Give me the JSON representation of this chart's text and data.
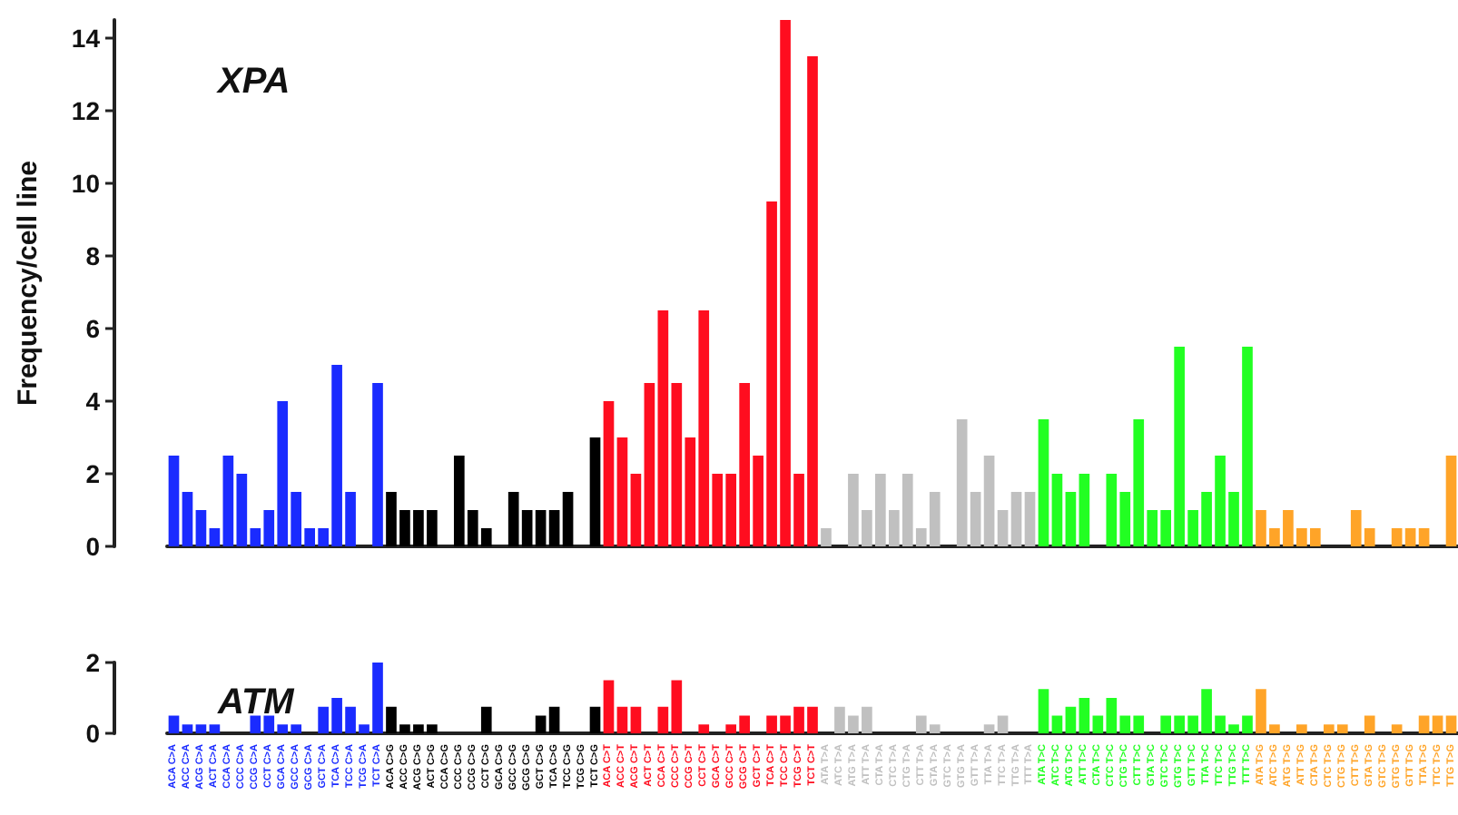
{
  "chart_data": [
    {
      "type": "bar",
      "title": "XPA",
      "ylabel": "Frequency/cell line",
      "tick_labels": "y",
      "categories": [
        null,
        null,
        null,
        null,
        null,
        null,
        null,
        null,
        null,
        null,
        null,
        null,
        null,
        null,
        null,
        null,
        null,
        null,
        null,
        null,
        null,
        null,
        null,
        null,
        null,
        null,
        null,
        null,
        null,
        null,
        null,
        null,
        null,
        null,
        null,
        null,
        null,
        null,
        null,
        null,
        null,
        null,
        null,
        null,
        null,
        null,
        null,
        null,
        null,
        null,
        null,
        null,
        null,
        null,
        null,
        null,
        null,
        null,
        null,
        null,
        null,
        null,
        null,
        null,
        null,
        null,
        null,
        null,
        null,
        null,
        null,
        null,
        null,
        null,
        null,
        null,
        null,
        null,
        null,
        null,
        null,
        null,
        null,
        null,
        null,
        null,
        null,
        null,
        null,
        null,
        null,
        null,
        null,
        null,
        null
      ],
      "values": [
        2.5,
        1.5,
        1,
        0.5,
        2.5,
        2,
        0.5,
        1,
        4,
        1.5,
        0.5,
        0.5,
        5,
        1.5,
        0,
        4.5,
        1.5,
        1,
        1,
        1,
        0,
        2.5,
        1,
        0.5,
        0,
        1.5,
        1,
        1,
        1,
        1.5,
        0,
        3,
        4,
        3,
        2,
        4.5,
        6.5,
        4.5,
        3,
        6.5,
        2,
        2,
        4.5,
        2.5,
        9.5,
        14.5,
        2,
        13.5,
        0.5,
        0,
        2,
        1,
        2,
        1,
        2,
        0.5,
        1.5,
        0,
        3.5,
        1.5,
        2.5,
        1,
        1.5,
        1.5,
        3.5,
        2,
        1.5,
        2,
        0,
        2,
        1.5,
        3.5,
        1,
        1,
        5.5,
        1,
        1.5,
        2.5,
        1.5,
        5.5,
        1,
        0.5,
        1,
        0.5,
        0.5,
        0,
        0,
        1,
        0.5,
        0,
        0.5,
        0.5,
        0.5,
        0,
        2.5
      ],
      "colors": [
        "#1a2bff",
        "#1a2bff",
        "#1a2bff",
        "#1a2bff",
        "#1a2bff",
        "#1a2bff",
        "#1a2bff",
        "#1a2bff",
        "#1a2bff",
        "#1a2bff",
        "#1a2bff",
        "#1a2bff",
        "#1a2bff",
        "#1a2bff",
        "#1a2bff",
        "#1a2bff",
        "#000000",
        "#000000",
        "#000000",
        "#000000",
        "#000000",
        "#000000",
        "#000000",
        "#000000",
        "#000000",
        "#000000",
        "#000000",
        "#000000",
        "#000000",
        "#000000",
        "#000000",
        "#000000",
        "#ff0d1f",
        "#ff0d1f",
        "#ff0d1f",
        "#ff0d1f",
        "#ff0d1f",
        "#ff0d1f",
        "#ff0d1f",
        "#ff0d1f",
        "#ff0d1f",
        "#ff0d1f",
        "#ff0d1f",
        "#ff0d1f",
        "#ff0d1f",
        "#ff0d1f",
        "#ff0d1f",
        "#ff0d1f",
        "#c0c0c0",
        "#c0c0c0",
        "#c0c0c0",
        "#c0c0c0",
        "#c0c0c0",
        "#c0c0c0",
        "#c0c0c0",
        "#c0c0c0",
        "#c0c0c0",
        "#c0c0c0",
        "#c0c0c0",
        "#c0c0c0",
        "#c0c0c0",
        "#c0c0c0",
        "#c0c0c0",
        "#c0c0c0",
        "#22ff22",
        "#22ff22",
        "#22ff22",
        "#22ff22",
        "#22ff22",
        "#22ff22",
        "#22ff22",
        "#22ff22",
        "#22ff22",
        "#22ff22",
        "#22ff22",
        "#22ff22",
        "#22ff22",
        "#22ff22",
        "#22ff22",
        "#22ff22",
        "#ffa428",
        "#ffa428",
        "#ffa428",
        "#ffa428",
        "#ffa428",
        "#ffa428",
        "#ffa428",
        "#ffa428",
        "#ffa428",
        "#ffa428",
        "#ffa428",
        "#ffa428",
        "#ffa428",
        "#ffa428",
        "#ffa428"
      ],
      "ylim": [
        0,
        14.5
      ],
      "yticks": [
        0,
        2,
        4,
        6,
        8,
        10,
        12,
        14
      ]
    },
    {
      "type": "bar",
      "title": "ATM",
      "categories": [
        "ACA C>A",
        "ACC C>A",
        "ACG C>A",
        "ACT C>A",
        "CCA C>A",
        "CCC C>A",
        "CCG C>A",
        "CCT C>A",
        "GCA C>A",
        "GCC C>A",
        "GCG C>A",
        "GCT C>A",
        "TCA C>A",
        "TCC C>A",
        "TCG C>A",
        "TCT C>A",
        "ACA C>G",
        "ACC C>G",
        "ACG C>G",
        "ACT C>G",
        "CCA C>G",
        "CCC C>G",
        "CCG C>G",
        "CCT C>G",
        "GCA C>G",
        "GCC C>G",
        "GCG C>G",
        "GCT C>G",
        "TCA C>G",
        "TCC C>G",
        "TCG C>G",
        "TCT C>G",
        "ACA C>T",
        "ACC C>T",
        "ACG C>T",
        "ACT C>T",
        "CCA C>T",
        "CCC C>T",
        "CCG C>T",
        "CCT C>T",
        "GCA C>T",
        "GCC C>T",
        "GCG C>T",
        "GCT C>T",
        "TCA C>T",
        "TCC C>T",
        "TCG C>T",
        "TCT C>T",
        "ATA T>A",
        "ATC T>A",
        "ATG T>A",
        "ATT T>A",
        "CTA T>A",
        "CTC T>A",
        "CTG T>A",
        "CTT T>A",
        "GTA T>A",
        "GTC T>A",
        "GTG T>A",
        "GTT T>A",
        "TTA T>A",
        "TTC T>A",
        "TTG T>A",
        "TTT T>A",
        "ATA T>C",
        "ATC T>C",
        "ATG T>C",
        "ATT T>C",
        "CTA T>C",
        "CTC T>C",
        "CTG T>C",
        "CTT T>C",
        "GTA T>C",
        "GTC T>C",
        "GTG T>C",
        "GTT T>C",
        "TTA T>C",
        "TTC T>C",
        "TTG T>C",
        "TTT T>C",
        "ATA T>G",
        "ATC T>G",
        "ATG T>G",
        "ATT T>G",
        "CTA T>G",
        "CTC T>G",
        "CTG T>G",
        "CTT T>G",
        "GTA T>G",
        "GTC T>G",
        "GTG T>G",
        "GTT T>G",
        "TTA T>G",
        "TTC T>G",
        "TTG T>G"
      ],
      "values": [
        0.5,
        0.25,
        0.25,
        0.25,
        0,
        0,
        0.5,
        0.5,
        0.25,
        0.25,
        0,
        0.75,
        1,
        0.75,
        0.25,
        2,
        0.75,
        0.25,
        0.25,
        0.25,
        0,
        0,
        0,
        0.75,
        0,
        0,
        0,
        0.5,
        0.75,
        0,
        0,
        0.75,
        1.5,
        0.75,
        0.75,
        0,
        0.75,
        1.5,
        0,
        0.25,
        0,
        0.25,
        0.5,
        0,
        0.5,
        0.5,
        0.75,
        0.75,
        0,
        0.75,
        0.5,
        0.75,
        0,
        0,
        0,
        0.5,
        0.25,
        0,
        0,
        0,
        0.25,
        0.5,
        0,
        0,
        1.25,
        0.5,
        0.75,
        1,
        0.5,
        1,
        0.5,
        0.5,
        0,
        0.5,
        0.5,
        0.5,
        1.25,
        0.5,
        0.25,
        0.5,
        1.25,
        0.25,
        0,
        0.25,
        0,
        0.25,
        0.25,
        0,
        0.5,
        0,
        0.25,
        0,
        0.5,
        0.5,
        0.5
      ],
      "colors": [
        "#1a2bff",
        "#1a2bff",
        "#1a2bff",
        "#1a2bff",
        "#1a2bff",
        "#1a2bff",
        "#1a2bff",
        "#1a2bff",
        "#1a2bff",
        "#1a2bff",
        "#1a2bff",
        "#1a2bff",
        "#1a2bff",
        "#1a2bff",
        "#1a2bff",
        "#1a2bff",
        "#000000",
        "#000000",
        "#000000",
        "#000000",
        "#000000",
        "#000000",
        "#000000",
        "#000000",
        "#000000",
        "#000000",
        "#000000",
        "#000000",
        "#000000",
        "#000000",
        "#000000",
        "#000000",
        "#ff0d1f",
        "#ff0d1f",
        "#ff0d1f",
        "#ff0d1f",
        "#ff0d1f",
        "#ff0d1f",
        "#ff0d1f",
        "#ff0d1f",
        "#ff0d1f",
        "#ff0d1f",
        "#ff0d1f",
        "#ff0d1f",
        "#ff0d1f",
        "#ff0d1f",
        "#ff0d1f",
        "#ff0d1f",
        "#c0c0c0",
        "#c0c0c0",
        "#c0c0c0",
        "#c0c0c0",
        "#c0c0c0",
        "#c0c0c0",
        "#c0c0c0",
        "#c0c0c0",
        "#c0c0c0",
        "#c0c0c0",
        "#c0c0c0",
        "#c0c0c0",
        "#c0c0c0",
        "#c0c0c0",
        "#c0c0c0",
        "#c0c0c0",
        "#22ff22",
        "#22ff22",
        "#22ff22",
        "#22ff22",
        "#22ff22",
        "#22ff22",
        "#22ff22",
        "#22ff22",
        "#22ff22",
        "#22ff22",
        "#22ff22",
        "#22ff22",
        "#22ff22",
        "#22ff22",
        "#22ff22",
        "#22ff22",
        "#ffa428",
        "#ffa428",
        "#ffa428",
        "#ffa428",
        "#ffa428",
        "#ffa428",
        "#ffa428",
        "#ffa428",
        "#ffa428",
        "#ffa428",
        "#ffa428",
        "#ffa428",
        "#ffa428",
        "#ffa428",
        "#ffa428"
      ],
      "ylim": [
        0,
        2
      ],
      "yticks": [
        0,
        2
      ]
    }
  ]
}
